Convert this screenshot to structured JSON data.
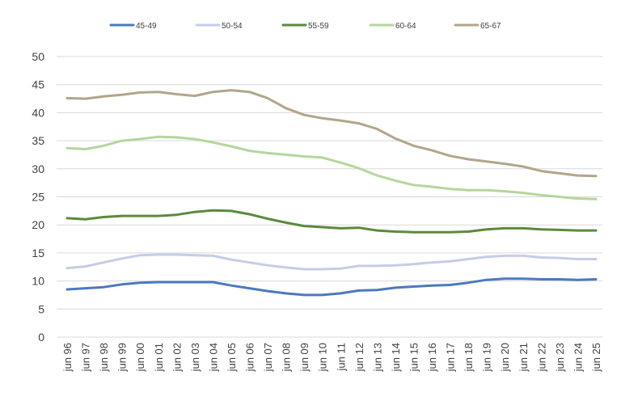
{
  "chart_data": {
    "type": "line",
    "title": "",
    "xlabel": "",
    "ylabel": "",
    "ylim": [
      0,
      50
    ],
    "yticks": [
      0,
      5,
      10,
      15,
      20,
      25,
      30,
      35,
      40,
      45,
      50
    ],
    "grid": true,
    "legend_position": "top",
    "categories": [
      "jun 96",
      "jun 97",
      "jun 98",
      "jun 99",
      "jun 00",
      "jun 01",
      "jun 02",
      "jun 03",
      "jun 04",
      "jun 05",
      "jun 06",
      "jun 07",
      "jun 08",
      "jun 09",
      "jun 10",
      "jun 11",
      "jun 12",
      "jun 13",
      "jun 14",
      "jun 15",
      "jun 16",
      "jun 17",
      "jun 18",
      "jun 19",
      "jun 20",
      "jun 21",
      "jun 22",
      "jun 23",
      "jun 24",
      "jun 25"
    ],
    "series": [
      {
        "name": "45-49",
        "color": "#4a7abf",
        "values": [
          8.5,
          8.7,
          8.9,
          9.4,
          9.7,
          9.8,
          9.8,
          9.8,
          9.8,
          9.2,
          8.7,
          8.2,
          7.8,
          7.5,
          7.5,
          7.8,
          8.3,
          8.4,
          8.8,
          9.0,
          9.2,
          9.3,
          9.7,
          10.2,
          10.4,
          10.4,
          10.3,
          10.3,
          10.2,
          10.3
        ]
      },
      {
        "name": "50-54",
        "color": "#c5cde6",
        "values": [
          12.3,
          12.6,
          13.3,
          14.0,
          14.6,
          14.7,
          14.7,
          14.6,
          14.5,
          13.8,
          13.3,
          12.8,
          12.4,
          12.1,
          12.1,
          12.2,
          12.7,
          12.7,
          12.8,
          13.0,
          13.3,
          13.5,
          13.9,
          14.3,
          14.5,
          14.5,
          14.2,
          14.1,
          13.9,
          13.9
        ]
      },
      {
        "name": "55-59",
        "color": "#5a8a3c",
        "values": [
          21.2,
          21.0,
          21.4,
          21.6,
          21.6,
          21.6,
          21.8,
          22.3,
          22.6,
          22.5,
          21.9,
          21.1,
          20.4,
          19.8,
          19.6,
          19.4,
          19.5,
          19.0,
          18.8,
          18.7,
          18.7,
          18.7,
          18.8,
          19.2,
          19.4,
          19.4,
          19.2,
          19.1,
          19.0,
          19.0
        ]
      },
      {
        "name": "60-64",
        "color": "#b5d69c",
        "values": [
          33.7,
          33.5,
          34.1,
          35.0,
          35.3,
          35.7,
          35.6,
          35.3,
          34.7,
          34.0,
          33.2,
          32.8,
          32.5,
          32.2,
          32.0,
          31.1,
          30.1,
          28.8,
          27.9,
          27.1,
          26.8,
          26.4,
          26.2,
          26.2,
          26.0,
          25.7,
          25.3,
          25.0,
          24.7,
          24.6
        ]
      },
      {
        "name": "65-67",
        "color": "#b2a68a",
        "values": [
          42.6,
          42.5,
          42.9,
          43.2,
          43.6,
          43.7,
          43.3,
          43.0,
          43.7,
          44.0,
          43.7,
          42.6,
          40.8,
          39.6,
          39.0,
          38.6,
          38.1,
          37.1,
          35.4,
          34.1,
          33.3,
          32.3,
          31.7,
          31.3,
          30.9,
          30.4,
          29.6,
          29.2,
          28.8,
          28.7
        ]
      }
    ]
  }
}
